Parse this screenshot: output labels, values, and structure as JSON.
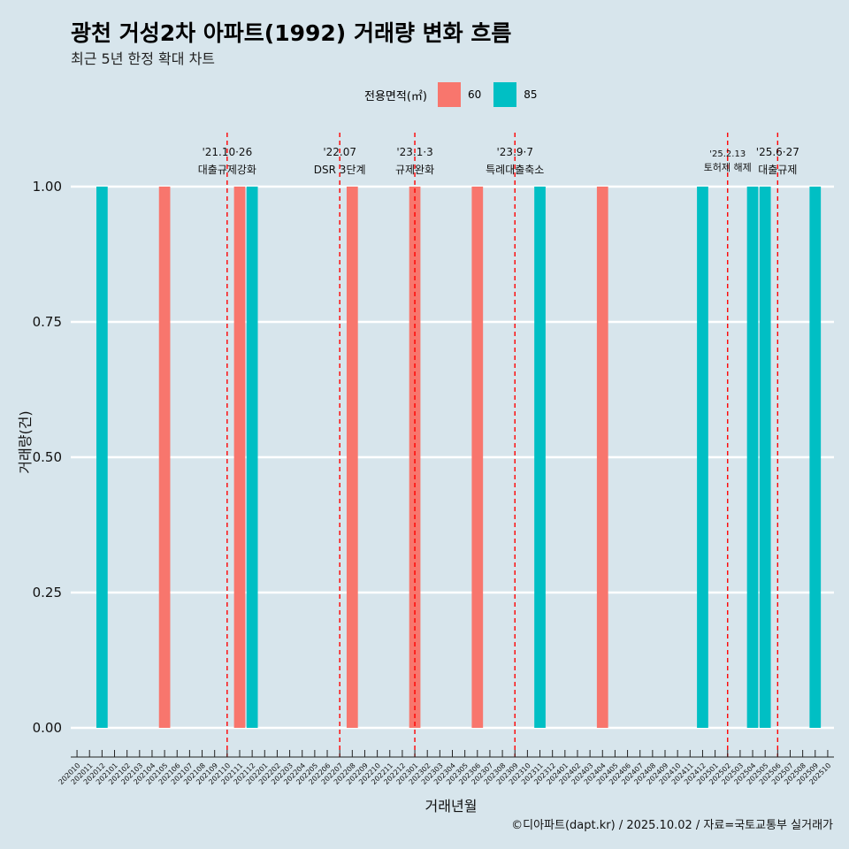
{
  "title": "광천 거성2차 아파트(1992) 거래량 변화 흐름",
  "subtitle": "최근 5년 한정 확대 차트",
  "legend": {
    "title": "전용면적(㎡)",
    "items": [
      {
        "label": "60",
        "color": "#f8766d"
      },
      {
        "label": "85",
        "color": "#00bfc4"
      }
    ]
  },
  "caption": "©디아파트(dapt.kr) / 2025.10.02 / 자료=국토교통부 실거래가",
  "chart_data": {
    "type": "bar",
    "xlabel": "거래년월",
    "ylabel": "거래량(건)",
    "ylim": [
      0,
      1
    ],
    "yticks": [
      "0.00",
      "0.25",
      "0.50",
      "0.75",
      "1.00"
    ],
    "categories": [
      "202010",
      "202011",
      "202012",
      "202101",
      "202102",
      "202103",
      "202104",
      "202105",
      "202106",
      "202107",
      "202108",
      "202109",
      "202110",
      "202111",
      "202112",
      "202201",
      "202202",
      "202203",
      "202204",
      "202205",
      "202206",
      "202207",
      "202208",
      "202209",
      "202210",
      "202211",
      "202212",
      "202301",
      "202302",
      "202303",
      "202304",
      "202305",
      "202306",
      "202307",
      "202308",
      "202309",
      "202310",
      "202311",
      "202312",
      "202401",
      "202402",
      "202403",
      "202404",
      "202405",
      "202406",
      "202407",
      "202408",
      "202409",
      "202410",
      "202411",
      "202412",
      "202501",
      "202502",
      "202503",
      "202504",
      "202505",
      "202506",
      "202507",
      "202508",
      "202509",
      "202510"
    ],
    "series": [
      {
        "name": "60",
        "color": "#f8766d",
        "points": [
          {
            "x": "202105",
            "y": 1
          },
          {
            "x": "202111",
            "y": 1
          },
          {
            "x": "202208",
            "y": 1
          },
          {
            "x": "202301",
            "y": 1
          },
          {
            "x": "202306",
            "y": 1
          },
          {
            "x": "202404",
            "y": 1
          }
        ]
      },
      {
        "name": "85",
        "color": "#00bfc4",
        "points": [
          {
            "x": "202012",
            "y": 1
          },
          {
            "x": "202112",
            "y": 1
          },
          {
            "x": "202311",
            "y": 1
          },
          {
            "x": "202412",
            "y": 1
          },
          {
            "x": "202504",
            "y": 1
          },
          {
            "x": "202505",
            "y": 1
          },
          {
            "x": "202509",
            "y": 1
          }
        ]
      }
    ],
    "events": [
      {
        "x": "202110",
        "date": "'21.10·26",
        "label": "대출규제강화"
      },
      {
        "x": "202207",
        "date": "'22.07",
        "label": "DSR 3단계"
      },
      {
        "x": "202301",
        "date": "'23.1·3",
        "label": "규제완화"
      },
      {
        "x": "202309",
        "date": "'23.9·7",
        "label": "특례대출축소"
      },
      {
        "x": "202502",
        "date": "'25.2.13",
        "label": "토허제 해제"
      },
      {
        "x": "202506",
        "date": "'25.6·27",
        "label": "대출규제"
      }
    ]
  }
}
